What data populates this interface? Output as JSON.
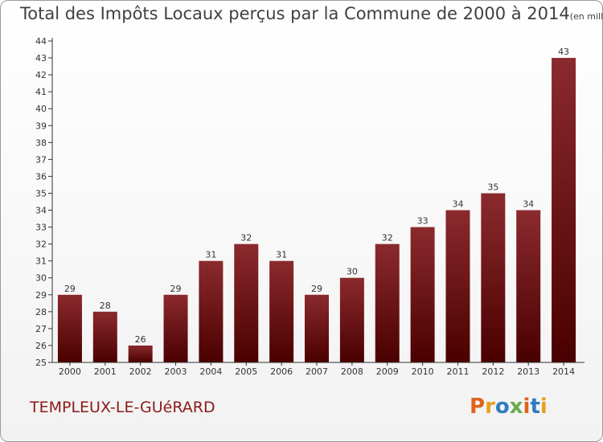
{
  "title": {
    "main": "Total des Impôts Locaux perçus par la Commune de 2000 à 2014",
    "unit": "(en milliers d'€)"
  },
  "commune": "TEMPLEUX-LE-GUéRARD",
  "logo": "Proxiti",
  "colors": {
    "bar_top": "#8b2a2e",
    "bar_bottom": "#4a0000",
    "commune_text": "#8b1a1a",
    "logo_letters": [
      "#e0631c",
      "#e8a01c",
      "#2f7bc4",
      "#6aa84f",
      "#e0631c",
      "#2f7bc4",
      "#e8a01c"
    ]
  },
  "chart_data": {
    "type": "bar",
    "categories": [
      "2000",
      "2001",
      "2002",
      "2003",
      "2004",
      "2005",
      "2006",
      "2007",
      "2008",
      "2009",
      "2010",
      "2011",
      "2012",
      "2013",
      "2014"
    ],
    "values": [
      29,
      28,
      26,
      29,
      31,
      32,
      31,
      29,
      30,
      32,
      33,
      34,
      35,
      34,
      43
    ],
    "ylim": [
      25,
      44
    ],
    "yticks": [
      25,
      26,
      27,
      28,
      29,
      30,
      31,
      32,
      33,
      34,
      35,
      36,
      37,
      38,
      39,
      40,
      41,
      42,
      43,
      44
    ],
    "title": "Total des Impôts Locaux perçus par la Commune de 2000 à 2014",
    "xlabel": "",
    "ylabel": "",
    "grid": false
  }
}
